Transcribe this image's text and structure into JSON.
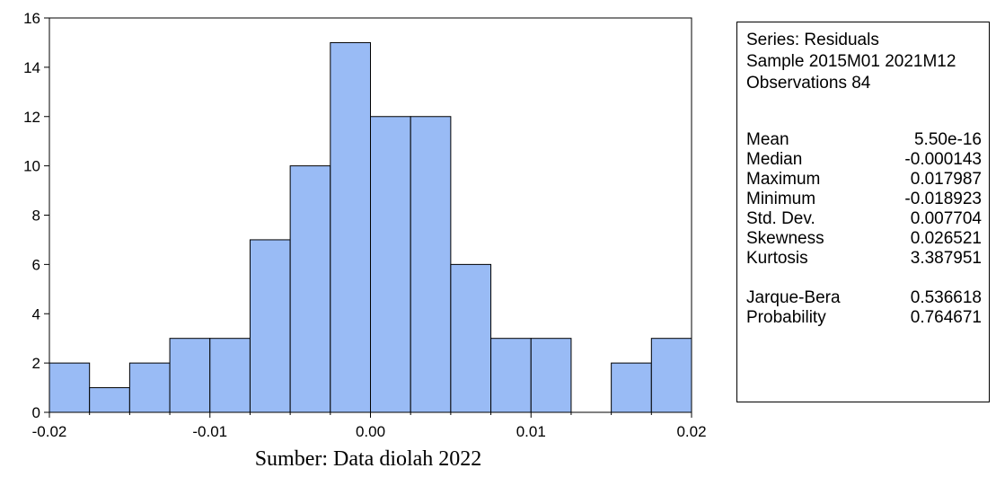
{
  "chart_data": {
    "type": "bar",
    "bin_edges": [
      -0.02,
      -0.0175,
      -0.015,
      -0.0125,
      -0.01,
      -0.0075,
      -0.005,
      -0.0025,
      0.0,
      0.0025,
      0.005,
      0.0075,
      0.01,
      0.0125,
      0.015,
      0.0175,
      0.02
    ],
    "values": [
      2,
      1,
      2,
      3,
      3,
      7,
      10,
      15,
      12,
      12,
      6,
      3,
      3,
      0,
      2,
      3
    ],
    "xlim": [
      -0.02,
      0.02
    ],
    "ylim": [
      0,
      16
    ],
    "x_ticks": [
      "-0.02",
      "-0.01",
      "0.00",
      "0.01",
      "0.02"
    ],
    "y_ticks": [
      "0",
      "2",
      "4",
      "6",
      "8",
      "10",
      "12",
      "14",
      "16"
    ],
    "bar_color": "#99BBF5",
    "title": "",
    "xlabel": "",
    "ylabel": ""
  },
  "stats": {
    "series": "Series: Residuals",
    "sample": "Sample 2015M01 2021M12",
    "observations": "Observations 84",
    "rows": [
      {
        "label": "Mean",
        "value": "5.50e-16"
      },
      {
        "label": "Median",
        "value": "-0.000143"
      },
      {
        "label": "Maximum",
        "value": "0.017987"
      },
      {
        "label": "Minimum",
        "value": "-0.018923"
      },
      {
        "label": "Std. Dev.",
        "value": "0.007704"
      },
      {
        "label": "Skewness",
        "value": "0.026521"
      },
      {
        "label": "Kurtosis",
        "value": "3.387951"
      }
    ],
    "tests": [
      {
        "label": "Jarque-Bera",
        "value": "0.536618"
      },
      {
        "label": "Probability",
        "value": "0.764671"
      }
    ]
  },
  "caption": "Sumber: Data diolah 2022"
}
